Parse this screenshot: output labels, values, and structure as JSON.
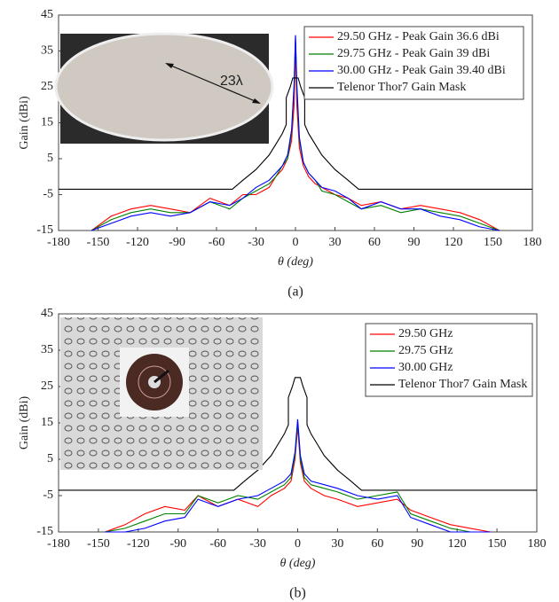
{
  "chart_data": [
    {
      "type": "line",
      "ylabel": "Gain (dBi)",
      "xlabel": "θ (deg)",
      "caption": "(a)",
      "xlim": [
        -180,
        180
      ],
      "xticks": [
        -180,
        -150,
        -120,
        -90,
        -60,
        -30,
        0,
        30,
        60,
        90,
        120,
        150,
        180
      ],
      "ylim": [
        -15,
        45
      ],
      "yticks": [
        -15,
        -5,
        5,
        15,
        25,
        35,
        45
      ],
      "annotations": [
        "23λ"
      ],
      "series": [
        {
          "name": "29.50 GHz - Peak Gain 36.6 dBi",
          "color": "#ff0000",
          "x": [
            -155,
            -140,
            -125,
            -110,
            -95,
            -80,
            -65,
            -50,
            -40,
            -30,
            -20,
            -15,
            -10,
            -6,
            -3,
            -1,
            0,
            1,
            3,
            6,
            10,
            15,
            20,
            30,
            40,
            50,
            65,
            80,
            95,
            110,
            125,
            140,
            155
          ],
          "values": [
            -15,
            -11,
            -9,
            -8,
            -9,
            -10,
            -6,
            -8,
            -5,
            -5,
            -3,
            0,
            2,
            5,
            10,
            20,
            36.6,
            20,
            8,
            3,
            0,
            -2,
            -3,
            -5,
            -6,
            -8,
            -7,
            -9,
            -8,
            -9,
            -10,
            -12,
            -15
          ]
        },
        {
          "name": "29.75 GHz - Peak Gain 39 dBi",
          "color": "#008000",
          "x": [
            -155,
            -140,
            -125,
            -110,
            -95,
            -80,
            -65,
            -50,
            -40,
            -30,
            -20,
            -15,
            -10,
            -6,
            -3,
            -1,
            0,
            1,
            3,
            6,
            10,
            15,
            20,
            30,
            40,
            50,
            65,
            80,
            95,
            110,
            125,
            140,
            155
          ],
          "values": [
            -15,
            -12,
            -10,
            -9,
            -10,
            -10,
            -7,
            -9,
            -6,
            -4,
            -2,
            0,
            3,
            5,
            12,
            25,
            39,
            24,
            10,
            4,
            1,
            -1,
            -4,
            -5,
            -7,
            -9,
            -8,
            -10,
            -9,
            -10,
            -11,
            -13,
            -15
          ]
        },
        {
          "name": "30.00 GHz - Peak Gain 39.40 dBi",
          "color": "#0000ff",
          "x": [
            -155,
            -140,
            -125,
            -110,
            -95,
            -80,
            -65,
            -50,
            -40,
            -30,
            -20,
            -15,
            -10,
            -6,
            -3,
            -1,
            0,
            1,
            3,
            6,
            10,
            15,
            20,
            30,
            40,
            50,
            65,
            80,
            95,
            110,
            125,
            140,
            155
          ],
          "values": [
            -15,
            -13,
            -11,
            -10,
            -11,
            -10,
            -7,
            -8,
            -6,
            -3,
            -1,
            1,
            3,
            6,
            13,
            26,
            39.4,
            26,
            11,
            4,
            1,
            -1,
            -3,
            -4,
            -6,
            -9,
            -7,
            -9,
            -9,
            -11,
            -12,
            -14,
            -15
          ]
        },
        {
          "name": "Telenor Thor7 Gain Mask",
          "color": "#000000",
          "x": [
            -180,
            -48,
            -40,
            -30,
            -20,
            -15,
            -10,
            -7,
            -7,
            -4,
            -2,
            2,
            4,
            7,
            7,
            10,
            15,
            20,
            30,
            40,
            48,
            180
          ],
          "values": [
            -3.5,
            -3.5,
            -1,
            2,
            6,
            9,
            12,
            14.5,
            22,
            25,
            27.5,
            27.5,
            25,
            22,
            14.5,
            12,
            9,
            6,
            2,
            -1,
            -3.5,
            -3.5
          ]
        }
      ]
    },
    {
      "type": "line",
      "ylabel": "Gain (dBi)",
      "xlabel": "θ (deg)",
      "caption": "(b)",
      "xlim": [
        -180,
        180
      ],
      "xticks": [
        -180,
        -150,
        -120,
        -90,
        -60,
        -30,
        0,
        30,
        60,
        90,
        120,
        150,
        180
      ],
      "ylim": [
        -15,
        45
      ],
      "yticks": [
        -15,
        -5,
        5,
        15,
        25,
        35,
        45
      ],
      "series": [
        {
          "name": "29.50 GHz",
          "color": "#ff0000",
          "x": [
            -145,
            -130,
            -115,
            -100,
            -85,
            -75,
            -60,
            -45,
            -30,
            -20,
            -10,
            -5,
            -2,
            0,
            2,
            5,
            10,
            20,
            30,
            45,
            60,
            75,
            85,
            100,
            115,
            130,
            145
          ],
          "values": [
            -15,
            -13,
            -10,
            -8,
            -9,
            -5,
            -8,
            -6,
            -8,
            -5,
            -3,
            -1,
            5,
            14,
            4,
            -1,
            -3,
            -5,
            -6,
            -8,
            -7,
            -6,
            -9,
            -11,
            -13,
            -14,
            -15
          ]
        },
        {
          "name": "29.75 GHz",
          "color": "#008000",
          "x": [
            -145,
            -130,
            -115,
            -100,
            -85,
            -75,
            -60,
            -45,
            -30,
            -20,
            -10,
            -5,
            -2,
            0,
            2,
            5,
            10,
            20,
            30,
            45,
            60,
            75,
            85,
            100,
            115,
            130,
            145
          ],
          "values": [
            -15,
            -14,
            -12,
            -10,
            -10,
            -5,
            -7,
            -5,
            -6,
            -4,
            -2,
            0,
            6,
            15,
            5,
            0,
            -2,
            -3,
            -4,
            -6,
            -5,
            -4,
            -10,
            -12,
            -14,
            -15,
            -15
          ]
        },
        {
          "name": "30.00 GHz",
          "color": "#0000ff",
          "x": [
            -145,
            -130,
            -115,
            -100,
            -85,
            -75,
            -60,
            -45,
            -30,
            -20,
            -10,
            -5,
            -2,
            0,
            2,
            5,
            10,
            20,
            30,
            45,
            60,
            75,
            85,
            100,
            115,
            130,
            145
          ],
          "values": [
            -15,
            -15,
            -14,
            -12,
            -11,
            -6,
            -8,
            -6,
            -5,
            -3,
            -1,
            1,
            7,
            16,
            6,
            1,
            -1,
            -2,
            -3,
            -5,
            -6,
            -5,
            -11,
            -13,
            -15,
            -15,
            -15
          ]
        },
        {
          "name": "Telenor Thor7 Gain Mask",
          "color": "#000000",
          "x": [
            -180,
            -48,
            -40,
            -30,
            -20,
            -15,
            -10,
            -7,
            -7,
            -4,
            -2,
            2,
            4,
            7,
            7,
            10,
            15,
            20,
            30,
            40,
            48,
            180
          ],
          "values": [
            -3.5,
            -3.5,
            -1,
            2,
            6,
            9,
            12,
            14.5,
            22,
            25,
            27.5,
            27.5,
            25,
            22,
            14.5,
            12,
            9,
            6,
            2,
            -1,
            -3.5,
            -3.5
          ]
        }
      ]
    }
  ]
}
